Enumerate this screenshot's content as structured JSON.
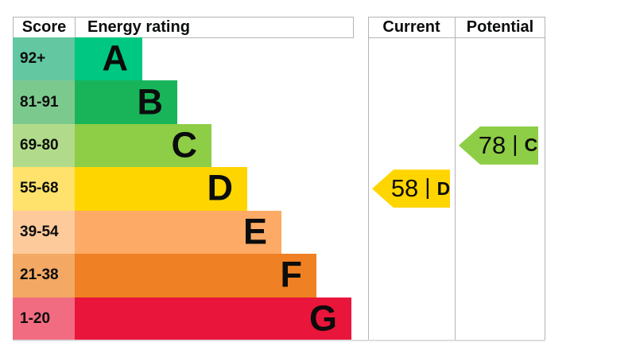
{
  "chart_data": {
    "type": "bar",
    "title": "EPC energy rating chart",
    "header": {
      "score": "Score",
      "rating": "Energy rating",
      "current": "Current",
      "potential": "Potential"
    },
    "bands": [
      {
        "letter": "A",
        "score": "92+",
        "color": "#00c781",
        "tint": "#63c7a2"
      },
      {
        "letter": "B",
        "score": "81-91",
        "color": "#19b459",
        "tint": "#7cc98e"
      },
      {
        "letter": "C",
        "score": "69-80",
        "color": "#8dce46",
        "tint": "#b1db8a"
      },
      {
        "letter": "D",
        "score": "55-68",
        "color": "#ffd500",
        "tint": "#ffe26b"
      },
      {
        "letter": "E",
        "score": "39-54",
        "color": "#fcaa65",
        "tint": "#fdca9b"
      },
      {
        "letter": "F",
        "score": "21-38",
        "color": "#ef8023",
        "tint": "#f3a863"
      },
      {
        "letter": "G",
        "score": "1-20",
        "color": "#e9153b",
        "tint": "#f16c80"
      }
    ],
    "current": {
      "score": "58",
      "rating": "D",
      "color": "#ffd500"
    },
    "potential": {
      "score": "78",
      "rating": "C",
      "color": "#8dce46"
    },
    "separator": "|",
    "line_color": "#b1b4b6",
    "text_color": "#0b0c0c"
  }
}
